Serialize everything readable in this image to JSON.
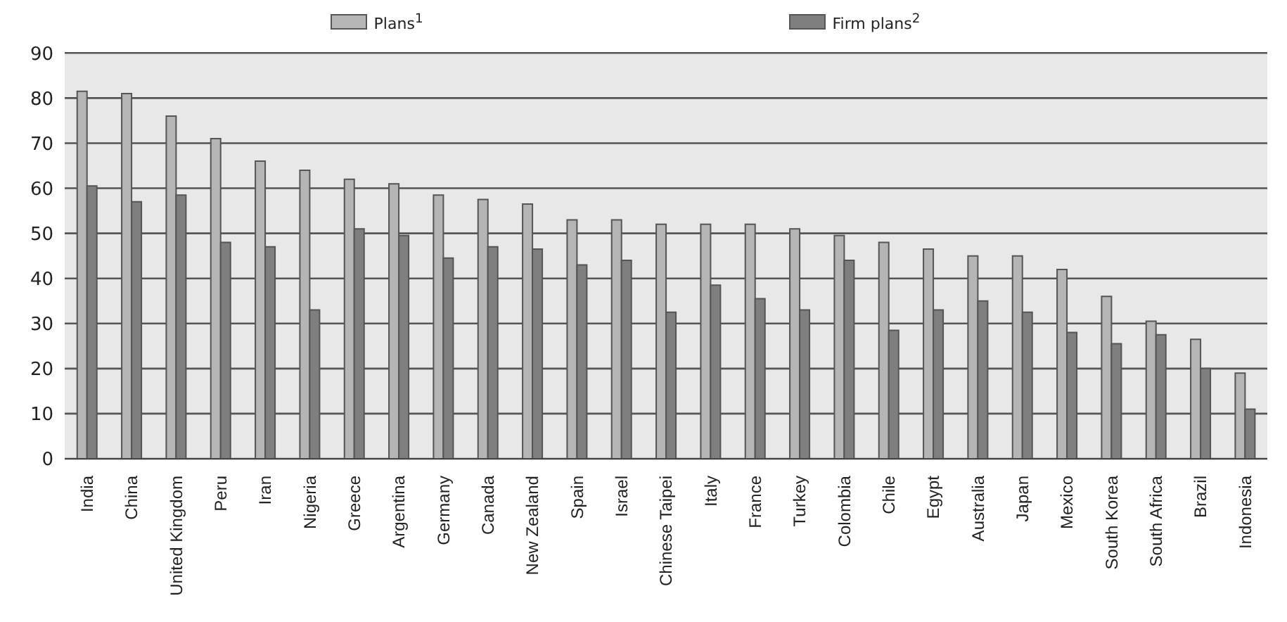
{
  "chart_data": {
    "type": "bar",
    "categories": [
      "India",
      "China",
      "United Kingdom",
      "Peru",
      "Iran",
      "Nigeria",
      "Greece",
      "Argentina",
      "Germany",
      "Canada",
      "New Zealand",
      "Spain",
      "Israel",
      "Chinese Taipei",
      "Italy",
      "France",
      "Turkey",
      "Colombia",
      "Chile",
      "Egypt",
      "Australia",
      "Japan",
      "Mexico",
      "South Korea",
      "South Africa",
      "Brazil",
      "Indonesia"
    ],
    "series": [
      {
        "name": "Plans$^{1}$",
        "color": "#b5b5b5",
        "values": [
          81.5,
          81,
          76,
          71,
          66,
          64,
          62,
          61,
          58.5,
          57.5,
          56.5,
          53,
          53,
          52,
          52,
          52,
          51,
          49.5,
          48,
          46.5,
          45,
          45,
          42,
          36,
          30.5,
          26.5,
          19
        ]
      },
      {
        "name": "Firm plans$^{2}$",
        "color": "#7f7f7f",
        "values": [
          60.5,
          57,
          58.5,
          48,
          47,
          33,
          51,
          49.5,
          44.5,
          47,
          46.5,
          43,
          44,
          32.5,
          38.5,
          35.5,
          33,
          44,
          28.5,
          33,
          35,
          32.5,
          28,
          25.5,
          27.5,
          20,
          11
        ]
      }
    ],
    "ylim": [
      0,
      90
    ],
    "yticks": [
      0,
      10,
      20,
      30,
      40,
      50,
      60,
      70,
      80,
      90
    ],
    "grid": "y",
    "legend": "top"
  }
}
